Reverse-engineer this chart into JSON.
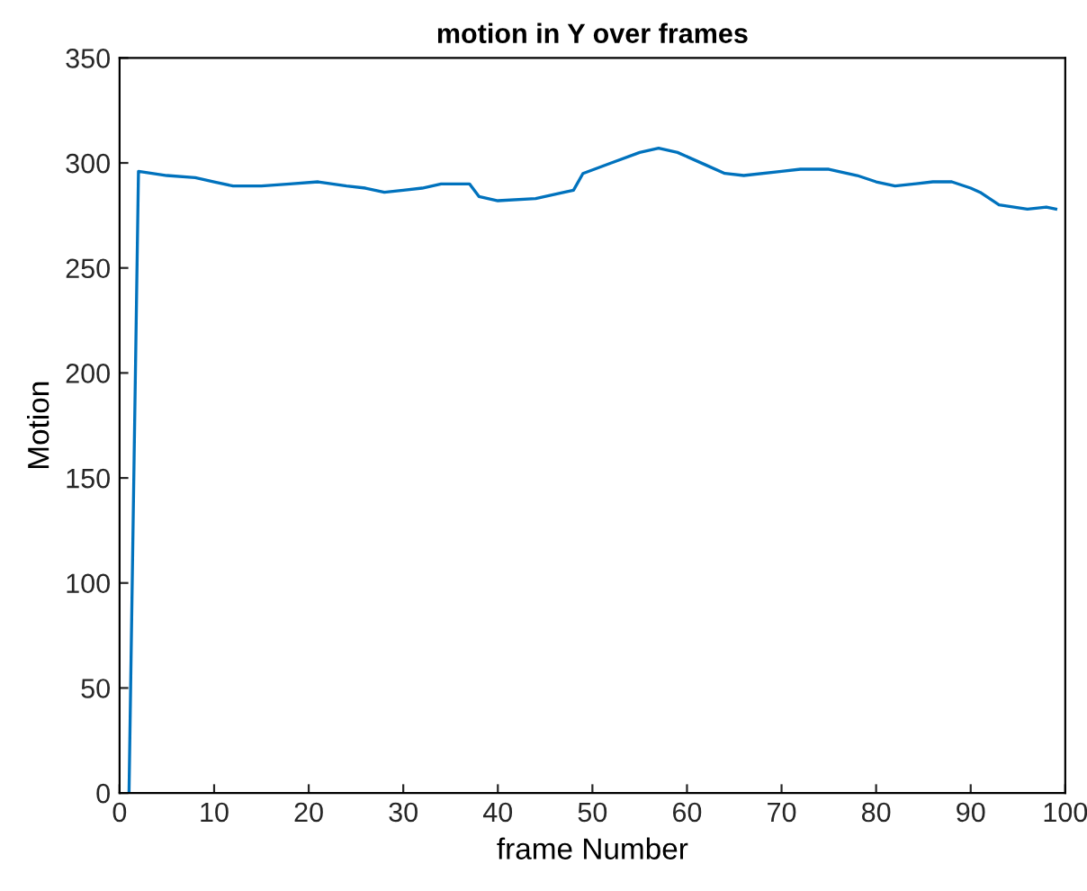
{
  "chart_data": {
    "type": "line",
    "title": "motion in Y over frames",
    "xlabel": "frame Number",
    "ylabel": "Motion",
    "xlim": [
      0,
      100
    ],
    "xticks": [
      0,
      10,
      20,
      30,
      40,
      50,
      60,
      70,
      80,
      90,
      100
    ],
    "ylim": [
      0,
      350
    ],
    "yticks": [
      0,
      50,
      100,
      150,
      200,
      250,
      300,
      350
    ],
    "grid": false,
    "series": [
      {
        "color": "#0072bd",
        "x": [
          1,
          2,
          5,
          8,
          10,
          12,
          15,
          18,
          21,
          24,
          26,
          28,
          30,
          32,
          34,
          37,
          38,
          40,
          44,
          47,
          48,
          49,
          52,
          55,
          57,
          59,
          62,
          64,
          66,
          70,
          72,
          75,
          78,
          80,
          82,
          84,
          86,
          88,
          90,
          91,
          93,
          96,
          98,
          99
        ],
        "values": [
          0,
          296,
          294,
          293,
          291,
          289,
          289,
          290,
          291,
          289,
          288,
          286,
          287,
          288,
          290,
          290,
          284,
          282,
          283,
          286,
          287,
          295,
          300,
          305,
          307,
          305,
          299,
          295,
          294,
          296,
          297,
          297,
          294,
          291,
          289,
          290,
          291,
          291,
          288,
          286,
          280,
          278,
          279,
          278
        ]
      }
    ]
  }
}
